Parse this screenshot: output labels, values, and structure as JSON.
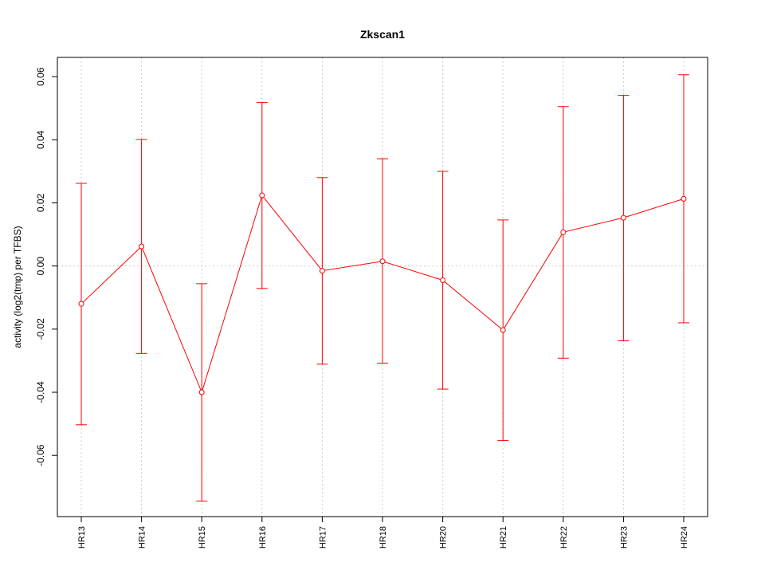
{
  "chart_data": {
    "type": "line",
    "title": "Zkscan1",
    "ylabel": "activity (log2(tmp) per TFBS)",
    "xlabel": "",
    "ylim": [
      -0.0794,
      0.0661
    ],
    "y_ticks": [
      -0.06,
      -0.04,
      -0.02,
      0.0,
      0.02,
      0.04,
      0.06
    ],
    "y_tick_labels": [
      "-0.06",
      "-0.04",
      "-0.02",
      "0.00",
      "0.02",
      "0.04",
      "0.06"
    ],
    "grid": true,
    "colors": {
      "series": "#ff0000",
      "grid": "#cccccc",
      "frame": "#000000"
    },
    "categories": [
      "HR13",
      "HR14",
      "HR15",
      "HR16",
      "HR17",
      "HR18",
      "HR20",
      "HR21",
      "HR22",
      "HR23",
      "HR24"
    ],
    "series": [
      {
        "values": [
          -0.012,
          0.0062,
          -0.04,
          0.0224,
          -0.0015,
          0.0015,
          -0.0045,
          -0.0203,
          0.0107,
          0.0153,
          0.0213
        ],
        "lower": [
          -0.0503,
          -0.0277,
          -0.0745,
          -0.0071,
          -0.0311,
          -0.0308,
          -0.039,
          -0.0553,
          -0.0292,
          -0.0237,
          -0.018
        ],
        "upper": [
          0.0262,
          0.0401,
          -0.0056,
          0.0518,
          0.028,
          0.034,
          0.03,
          0.0146,
          0.0505,
          0.0541,
          0.0606
        ]
      }
    ]
  }
}
